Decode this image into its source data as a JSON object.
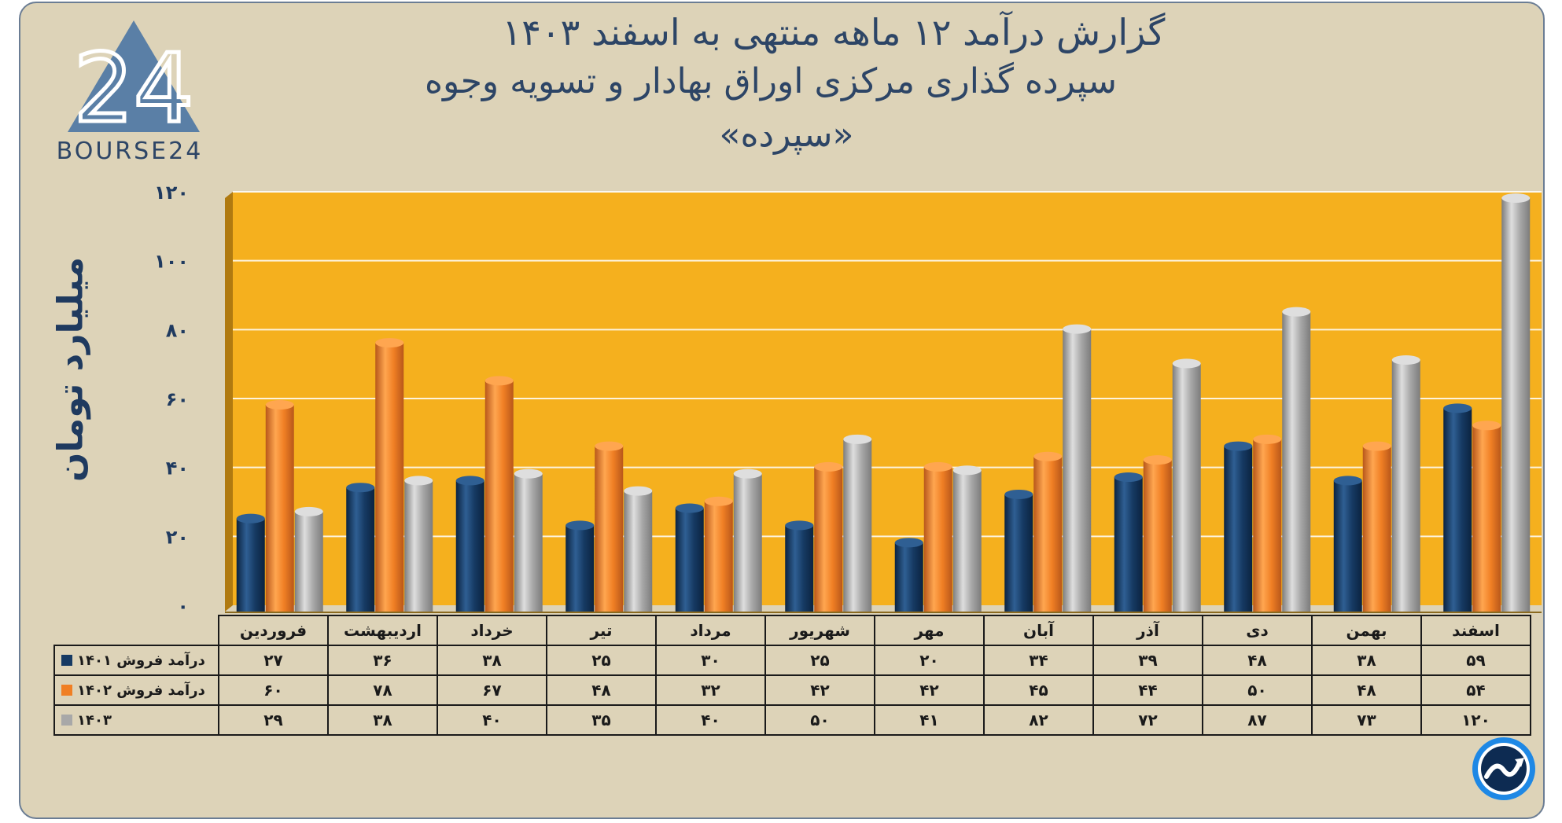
{
  "header": {
    "title_line1": "گزارش  درآمد ۱۲ ماهه منتهی به اسفند ۱۴۰۳",
    "title_line2": "سپرده گذاری مرکزی اوراق بهادار و تسویه وجوه",
    "title_line3": "«سپرده»"
  },
  "logo": {
    "text": "BOURSE24",
    "mark": "24"
  },
  "badge": {
    "icon": "trend-arrow-icon"
  },
  "colors": {
    "background": "#ddd3b8",
    "plot_area": "#f5b01e",
    "series_1401": "#163a63",
    "series_1402": "#f07f24",
    "series_1403": "#a8a8a8",
    "text": "#2d4566"
  },
  "chart_data": {
    "type": "bar",
    "title": "گزارش  درآمد ۱۲ ماهه منتهی به اسفند ۱۴۰۳",
    "ylabel": "میلیارد تومان",
    "xlabel": "",
    "ylim": [
      0,
      120
    ],
    "yticks": [
      0,
      20,
      40,
      60,
      80,
      100,
      120
    ],
    "ytick_labels": [
      "۰",
      "۲۰",
      "۴۰",
      "۶۰",
      "۸۰",
      "۱۰۰",
      "۱۲۰"
    ],
    "grid": true,
    "legend": "data-table-left",
    "categories": [
      "فروردین",
      "اردیبهشت",
      "خرداد",
      "تیر",
      "مرداد",
      "شهریور",
      "مهر",
      "آبان",
      "آذر",
      "دی",
      "بهمن",
      "اسفند"
    ],
    "series": [
      {
        "name": "درآمد فروش ۱۴۰۱",
        "values": [
          27,
          36,
          38,
          25,
          30,
          25,
          20,
          34,
          39,
          48,
          38,
          59
        ],
        "labels": [
          "۲۷",
          "۳۶",
          "۳۸",
          "۲۵",
          "۳۰",
          "۲۵",
          "۲۰",
          "۳۴",
          "۳۹",
          "۴۸",
          "۳۸",
          "۵۹"
        ]
      },
      {
        "name": "درآمد فروش ۱۴۰۲",
        "values": [
          60,
          78,
          67,
          48,
          32,
          42,
          42,
          45,
          44,
          50,
          48,
          54
        ],
        "labels": [
          "۶۰",
          "۷۸",
          "۶۷",
          "۴۸",
          "۳۲",
          "۴۲",
          "۴۲",
          "۴۵",
          "۴۴",
          "۵۰",
          "۴۸",
          "۵۴"
        ]
      },
      {
        "name": "۱۴۰۳",
        "values": [
          29,
          38,
          40,
          35,
          40,
          50,
          41,
          82,
          72,
          87,
          73,
          120
        ],
        "labels": [
          "۲۹",
          "۳۸",
          "۴۰",
          "۳۵",
          "۴۰",
          "۵۰",
          "۴۱",
          "۸۲",
          "۷۲",
          "۸۷",
          "۷۳",
          "۱۲۰"
        ]
      }
    ]
  }
}
